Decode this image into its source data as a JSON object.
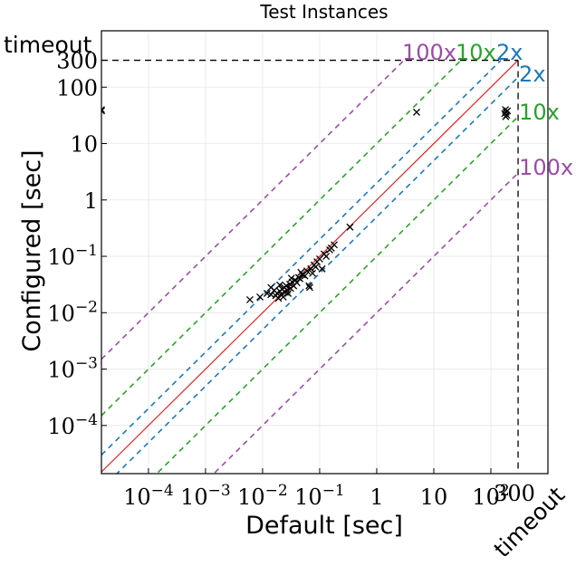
{
  "chart_data": {
    "type": "scatter",
    "title": "Test Instances",
    "xlabel": "Default [sec]",
    "ylabel": "Configured [sec]",
    "scale": "log",
    "xlim": [
      1.5e-05,
      1000
    ],
    "ylim": [
      1.4e-05,
      1000
    ],
    "timeout_value": 300,
    "timeout_label": "timeout",
    "timeout_tick_label": "300",
    "x_ticks": [
      {
        "value": 0.0001,
        "base": "10",
        "exp": "−4"
      },
      {
        "value": 0.001,
        "base": "10",
        "exp": "−3"
      },
      {
        "value": 0.01,
        "base": "10",
        "exp": "−2"
      },
      {
        "value": 0.1,
        "base": "10",
        "exp": "−1"
      },
      {
        "value": 1,
        "base": "1",
        "exp": ""
      },
      {
        "value": 10,
        "base": "10",
        "exp": ""
      },
      {
        "value": 100,
        "base": "10",
        "exp": "2"
      }
    ],
    "y_ticks": [
      {
        "value": 0.0001,
        "base": "10",
        "exp": "−4"
      },
      {
        "value": 0.001,
        "base": "10",
        "exp": "−3"
      },
      {
        "value": 0.01,
        "base": "10",
        "exp": "−2"
      },
      {
        "value": 0.1,
        "base": "10",
        "exp": "−1"
      },
      {
        "value": 1,
        "base": "1",
        "exp": ""
      },
      {
        "value": 10,
        "base": "10",
        "exp": ""
      },
      {
        "value": 100,
        "base": "100",
        "exp": ""
      }
    ],
    "grid": true,
    "diagonal_color": "#d62728",
    "ratio_lines": [
      {
        "factor": 2,
        "label": "2x",
        "color": "#1f77b4"
      },
      {
        "factor": 10,
        "label": "10x",
        "color": "#2ca02c"
      },
      {
        "factor": 100,
        "label": "100x",
        "color": "#984ea3"
      }
    ],
    "points": [
      {
        "x": 1.5e-05,
        "y": 40
      },
      {
        "x": 1.5e-05,
        "y": 38
      },
      {
        "x": 5,
        "y": 36
      },
      {
        "x": 0.006,
        "y": 0.017
      },
      {
        "x": 0.009,
        "y": 0.019
      },
      {
        "x": 0.012,
        "y": 0.022
      },
      {
        "x": 0.014,
        "y": 0.021
      },
      {
        "x": 0.016,
        "y": 0.025
      },
      {
        "x": 0.017,
        "y": 0.02
      },
      {
        "x": 0.018,
        "y": 0.022
      },
      {
        "x": 0.019,
        "y": 0.018
      },
      {
        "x": 0.02,
        "y": 0.024
      },
      {
        "x": 0.021,
        "y": 0.021
      },
      {
        "x": 0.022,
        "y": 0.026
      },
      {
        "x": 0.023,
        "y": 0.019
      },
      {
        "x": 0.024,
        "y": 0.028
      },
      {
        "x": 0.025,
        "y": 0.023
      },
      {
        "x": 0.026,
        "y": 0.03
      },
      {
        "x": 0.027,
        "y": 0.025
      },
      {
        "x": 0.028,
        "y": 0.022
      },
      {
        "x": 0.03,
        "y": 0.032
      },
      {
        "x": 0.031,
        "y": 0.027
      },
      {
        "x": 0.033,
        "y": 0.035
      },
      {
        "x": 0.035,
        "y": 0.03
      },
      {
        "x": 0.037,
        "y": 0.038
      },
      {
        "x": 0.04,
        "y": 0.034
      },
      {
        "x": 0.043,
        "y": 0.042
      },
      {
        "x": 0.045,
        "y": 0.04
      },
      {
        "x": 0.05,
        "y": 0.047
      },
      {
        "x": 0.055,
        "y": 0.045
      },
      {
        "x": 0.06,
        "y": 0.055
      },
      {
        "x": 0.065,
        "y": 0.03
      },
      {
        "x": 0.067,
        "y": 0.028
      },
      {
        "x": 0.07,
        "y": 0.06
      },
      {
        "x": 0.075,
        "y": 0.05
      },
      {
        "x": 0.08,
        "y": 0.07
      },
      {
        "x": 0.085,
        "y": 0.065
      },
      {
        "x": 0.09,
        "y": 0.08
      },
      {
        "x": 0.1,
        "y": 0.09
      },
      {
        "x": 0.11,
        "y": 0.06
      },
      {
        "x": 0.12,
        "y": 0.11
      },
      {
        "x": 0.13,
        "y": 0.1
      },
      {
        "x": 0.15,
        "y": 0.13
      },
      {
        "x": 0.16,
        "y": 0.14
      },
      {
        "x": 0.18,
        "y": 0.16
      },
      {
        "x": 0.34,
        "y": 0.33
      },
      {
        "x": 0.014,
        "y": 0.028
      },
      {
        "x": 0.02,
        "y": 0.031
      },
      {
        "x": 0.032,
        "y": 0.041
      },
      {
        "x": 0.047,
        "y": 0.052
      },
      {
        "x": 180,
        "y": 40
      },
      {
        "x": 185,
        "y": 36
      },
      {
        "x": 190,
        "y": 32
      },
      {
        "x": 175,
        "y": 34
      },
      {
        "x": 195,
        "y": 38
      },
      {
        "x": 182,
        "y": 30
      }
    ]
  }
}
